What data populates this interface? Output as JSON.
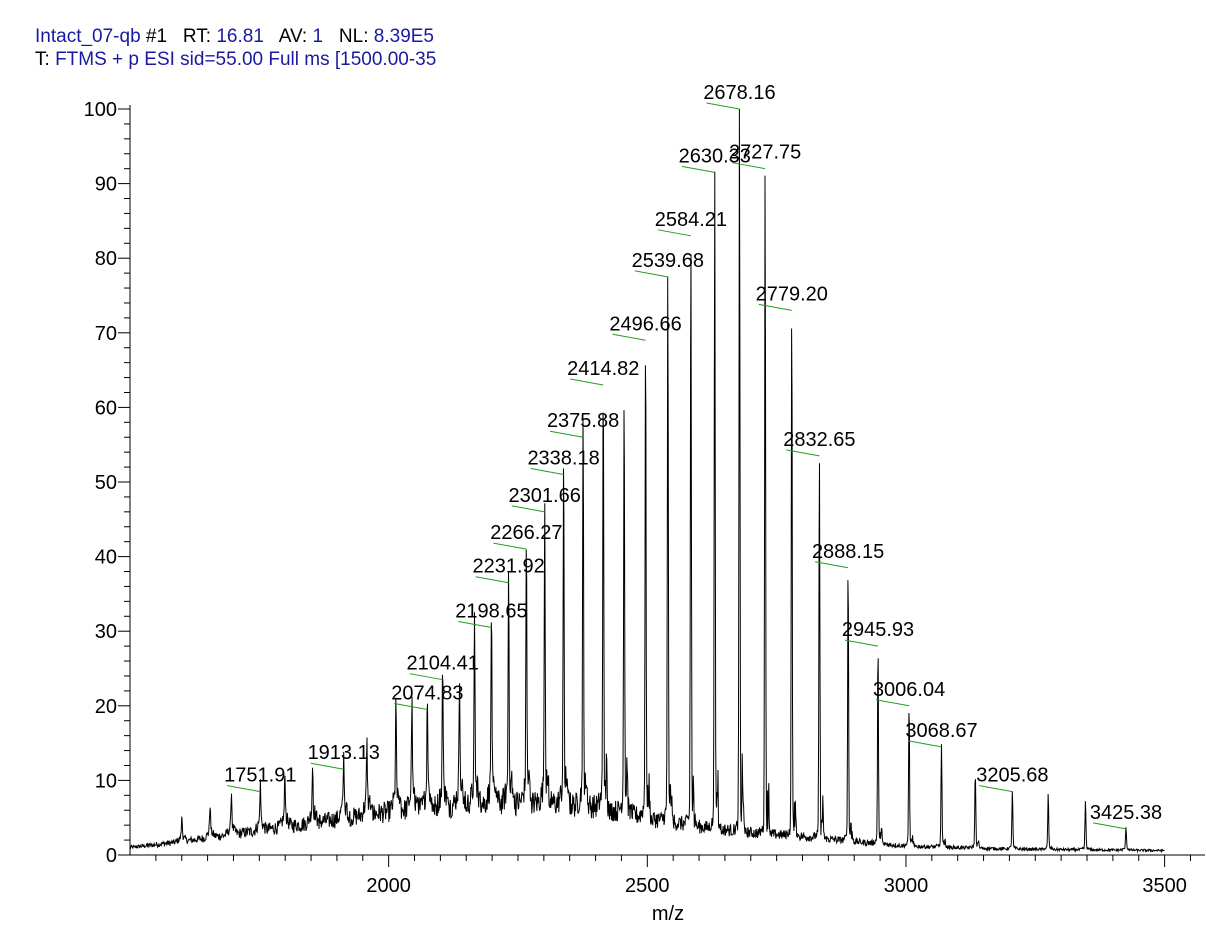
{
  "header": {
    "scan_label": "Intact_07-qb",
    "scan_number": "#1",
    "rt_label": "RT:",
    "rt_value": "16.81",
    "av_label": "AV:",
    "av_value": "1",
    "nl_label": "NL:",
    "nl_value": "8.39E5",
    "filter_label": "T:",
    "filter_value": "FTMS + p ESI sid=55.00  Full ms [1500.00-35"
  },
  "chart_data": {
    "type": "line",
    "title": "",
    "xlabel": "m/z",
    "ylabel": "",
    "xlim": [
      1500,
      3580
    ],
    "ylim": [
      0,
      100
    ],
    "x_ticks": [
      2000,
      2500,
      3000,
      3500
    ],
    "y_ticks": [
      0,
      10,
      20,
      30,
      40,
      50,
      60,
      70,
      80,
      90,
      100
    ],
    "x_minor_step": 50,
    "y_minor_step": 2,
    "grid": false,
    "colors": {
      "trace": "#000000",
      "axis": "#000000",
      "label_line": "#1f9e1f",
      "header_value": "#1a1aa0"
    },
    "peak_series": [
      {
        "mz": 1600.3,
        "intensity": 4.5
      },
      {
        "mz": 1654.8,
        "intensity": 6.0
      },
      {
        "mz": 1696.0,
        "intensity": 7.5
      },
      {
        "mz": 1751.91,
        "intensity": 8.5,
        "label": "1751.91"
      },
      {
        "mz": 1799.5,
        "intensity": 9.5
      },
      {
        "mz": 1853.0,
        "intensity": 10.5
      },
      {
        "mz": 1913.13,
        "intensity": 11.5,
        "label": "1913.13"
      },
      {
        "mz": 1958.0,
        "intensity": 13.0
      },
      {
        "mz": 2014.0,
        "intensity": 18.5
      },
      {
        "mz": 2045.0,
        "intensity": 19.0
      },
      {
        "mz": 2074.83,
        "intensity": 19.5,
        "label": "2074.83"
      },
      {
        "mz": 2104.41,
        "intensity": 23.5,
        "label": "2104.41"
      },
      {
        "mz": 2137.0,
        "intensity": 22.5
      },
      {
        "mz": 2166.0,
        "intensity": 29.0
      },
      {
        "mz": 2198.65,
        "intensity": 30.5,
        "label": "2198.65"
      },
      {
        "mz": 2231.92,
        "intensity": 36.5,
        "label": "2231.92"
      },
      {
        "mz": 2266.27,
        "intensity": 41.0,
        "label": "2266.27"
      },
      {
        "mz": 2301.66,
        "intensity": 46.0,
        "label": "2301.66"
      },
      {
        "mz": 2338.18,
        "intensity": 51.0,
        "label": "2338.18"
      },
      {
        "mz": 2375.88,
        "intensity": 56.0,
        "label": "2375.88"
      },
      {
        "mz": 2414.82,
        "intensity": 63.0,
        "label": "2414.82"
      },
      {
        "mz": 2455.2,
        "intensity": 61.5
      },
      {
        "mz": 2496.66,
        "intensity": 69.0,
        "label": "2496.66"
      },
      {
        "mz": 2539.68,
        "intensity": 77.5,
        "label": "2539.68"
      },
      {
        "mz": 2584.21,
        "intensity": 83.0,
        "label": "2584.21"
      },
      {
        "mz": 2630.33,
        "intensity": 91.5,
        "label": "2630.33"
      },
      {
        "mz": 2678.16,
        "intensity": 100.0,
        "label": "2678.16"
      },
      {
        "mz": 2727.75,
        "intensity": 92.0,
        "label": "2727.75"
      },
      {
        "mz": 2779.2,
        "intensity": 73.0,
        "label": "2779.20"
      },
      {
        "mz": 2832.65,
        "intensity": 53.5,
        "label": "2832.65"
      },
      {
        "mz": 2888.15,
        "intensity": 38.5,
        "label": "2888.15"
      },
      {
        "mz": 2945.93,
        "intensity": 28.0,
        "label": "2945.93"
      },
      {
        "mz": 3006.04,
        "intensity": 20.0,
        "label": "3006.04"
      },
      {
        "mz": 3068.67,
        "intensity": 14.5,
        "label": "3068.67"
      },
      {
        "mz": 3134.0,
        "intensity": 11.0
      },
      {
        "mz": 3205.68,
        "intensity": 8.5,
        "label": "3205.68"
      },
      {
        "mz": 3275.0,
        "intensity": 8.0
      },
      {
        "mz": 3347.0,
        "intensity": 7.0
      },
      {
        "mz": 3425.38,
        "intensity": 3.5,
        "label": "3425.38"
      }
    ],
    "baseline": [
      {
        "mz": 1500,
        "intensity": 1.0
      },
      {
        "mz": 1600,
        "intensity": 1.8
      },
      {
        "mz": 1700,
        "intensity": 2.8
      },
      {
        "mz": 1800,
        "intensity": 3.8
      },
      {
        "mz": 1900,
        "intensity": 4.8
      },
      {
        "mz": 2000,
        "intensity": 5.8
      },
      {
        "mz": 2100,
        "intensity": 6.5
      },
      {
        "mz": 2200,
        "intensity": 7.0
      },
      {
        "mz": 2300,
        "intensity": 7.0
      },
      {
        "mz": 2400,
        "intensity": 6.5
      },
      {
        "mz": 2500,
        "intensity": 5.0
      },
      {
        "mz": 2600,
        "intensity": 3.8
      },
      {
        "mz": 2700,
        "intensity": 3.0
      },
      {
        "mz": 2800,
        "intensity": 2.5
      },
      {
        "mz": 2900,
        "intensity": 1.8
      },
      {
        "mz": 3000,
        "intensity": 1.2
      },
      {
        "mz": 3200,
        "intensity": 0.8
      },
      {
        "mz": 3500,
        "intensity": 0.6
      }
    ]
  }
}
